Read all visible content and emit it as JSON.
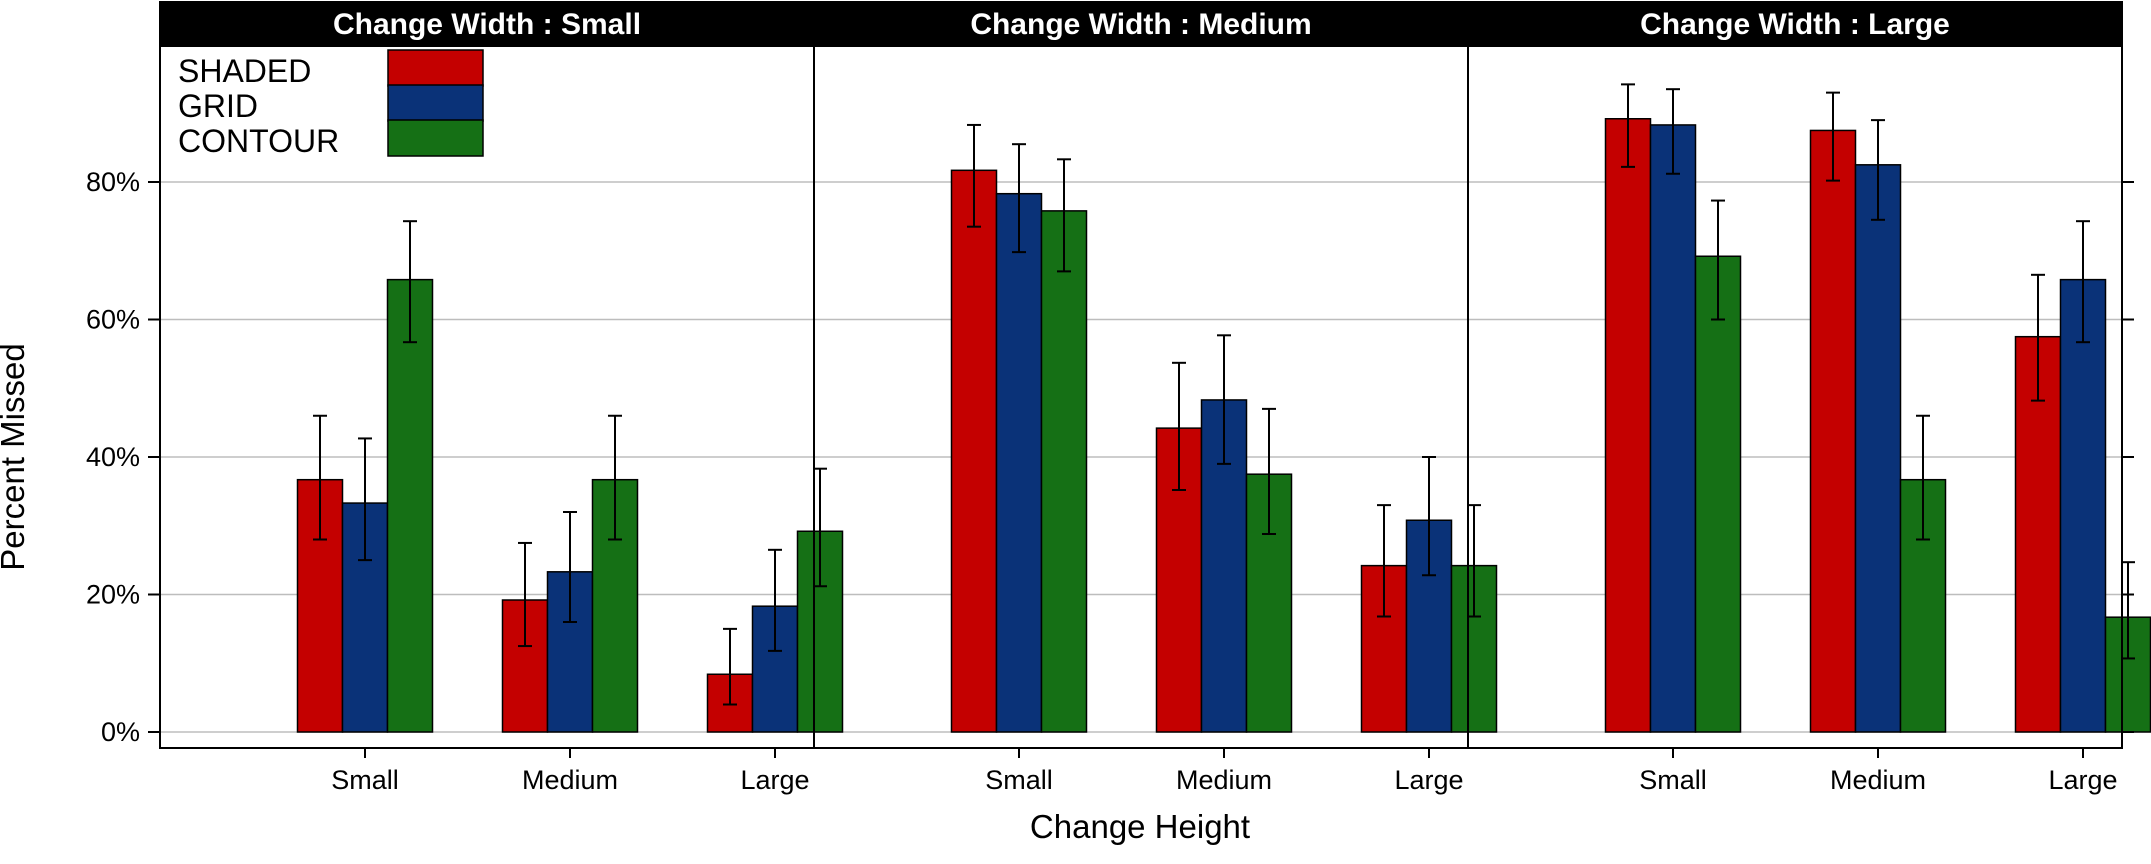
{
  "chart_data": {
    "type": "bar",
    "layout": "faceted",
    "xlabel": "Change Height",
    "ylabel": "Percent Missed",
    "ylim": [
      0,
      100
    ],
    "yticks": [
      0,
      20,
      40,
      60,
      80
    ],
    "ytick_labels": [
      "0%",
      "20%",
      "40%",
      "60%",
      "80%"
    ],
    "grid": true,
    "legend": {
      "placement": "top-left",
      "entries": [
        "SHADED",
        "GRID",
        "CONTOUR"
      ]
    },
    "colors": {
      "SHADED": "#c40000",
      "GRID": "#0a3278",
      "CONTOUR": "#157015",
      "strip_background": "#000000",
      "strip_text": "#ffffff",
      "gridline": "#bdbdbd"
    },
    "categories": [
      "Small",
      "Medium",
      "Large"
    ],
    "panels": [
      {
        "title": "Change Width : Small",
        "series": [
          {
            "name": "SHADED",
            "values": [
              36.7,
              19.2,
              8.4
            ],
            "lower": [
              28.0,
              12.5,
              4.0
            ],
            "upper": [
              46.0,
              27.5,
              15.0
            ]
          },
          {
            "name": "GRID",
            "values": [
              33.3,
              23.3,
              18.3
            ],
            "lower": [
              25.0,
              16.0,
              11.8
            ],
            "upper": [
              42.7,
              32.0,
              26.5
            ]
          },
          {
            "name": "CONTOUR",
            "values": [
              65.8,
              36.7,
              29.2
            ],
            "lower": [
              56.7,
              28.0,
              21.2
            ],
            "upper": [
              74.3,
              46.0,
              38.3
            ]
          }
        ]
      },
      {
        "title": "Change Width : Medium",
        "series": [
          {
            "name": "SHADED",
            "values": [
              81.7,
              44.2,
              24.2
            ],
            "lower": [
              73.5,
              35.2,
              16.8
            ],
            "upper": [
              88.3,
              53.7,
              33.0
            ]
          },
          {
            "name": "GRID",
            "values": [
              78.3,
              48.3,
              30.8
            ],
            "lower": [
              69.8,
              39.0,
              22.8
            ],
            "upper": [
              85.5,
              57.7,
              40.0
            ]
          },
          {
            "name": "CONTOUR",
            "values": [
              75.8,
              37.5,
              24.2
            ],
            "lower": [
              67.0,
              28.8,
              16.8
            ],
            "upper": [
              83.3,
              47.0,
              33.0
            ]
          }
        ]
      },
      {
        "title": "Change Width : Large",
        "series": [
          {
            "name": "SHADED",
            "values": [
              89.2,
              87.5,
              57.5
            ],
            "lower": [
              82.2,
              80.2,
              48.2
            ],
            "upper": [
              94.2,
              93.0,
              66.5
            ]
          },
          {
            "name": "GRID",
            "values": [
              88.3,
              82.5,
              65.8
            ],
            "lower": [
              81.2,
              74.5,
              56.7
            ],
            "upper": [
              93.5,
              89.0,
              74.3
            ]
          },
          {
            "name": "CONTOUR",
            "values": [
              69.2,
              36.7,
              16.7
            ],
            "lower": [
              60.0,
              28.0,
              10.7
            ],
            "upper": [
              77.3,
              46.0,
              24.7
            ]
          }
        ]
      }
    ]
  }
}
